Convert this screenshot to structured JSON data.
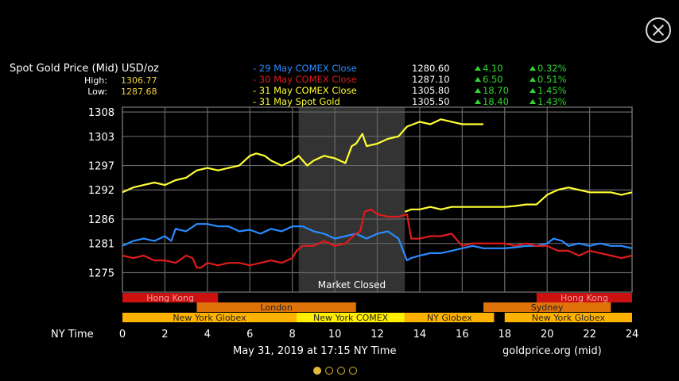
{
  "header": {
    "title": "Spot Gold Price (Mid) USD/oz",
    "high_label": "High:",
    "high_value": "1306.77",
    "low_label": "Low:",
    "low_value": "1287.68"
  },
  "legend": [
    {
      "name": "- 29 May COMEX Close",
      "color": "#2a8cff",
      "price": "1280.60",
      "change": "4.10",
      "pct": "0.32%"
    },
    {
      "name": "- 30 May COMEX Close",
      "color": "#e01b1b",
      "price": "1287.10",
      "change": "6.50",
      "pct": "0.51%"
    },
    {
      "name": "- 31 May COMEX Close",
      "color": "#ffff33",
      "price": "1305.80",
      "change": "18.70",
      "pct": "1.45%"
    },
    {
      "name": "- 31 May Spot Gold",
      "color": "#ffff33",
      "price": "1305.50",
      "change": "18.40",
      "pct": "1.43%"
    }
  ],
  "footer": {
    "date": "May 31, 2019 at 17:15 NY Time",
    "source": "goldprice.org (mid)"
  },
  "pager": {
    "count": 4,
    "active": 0
  },
  "chart_data": {
    "type": "line",
    "xlabel": "NY Time",
    "xlim": [
      0,
      24
    ],
    "ylim": [
      1271,
      1309
    ],
    "x_ticks": [
      0,
      2,
      4,
      6,
      8,
      10,
      12,
      14,
      16,
      18,
      20,
      22,
      24
    ],
    "y_ticks": [
      1275,
      1281,
      1286,
      1292,
      1297,
      1303,
      1308
    ],
    "closed_region": {
      "start": 8.3,
      "end": 13.3,
      "label": "Market Closed"
    },
    "sessions": [
      {
        "row": 1,
        "segments": [
          {
            "label": "Hong Kong",
            "start": 0,
            "end": 4.5,
            "color": "#cc1111",
            "text_color": "#f0a0a0"
          },
          {
            "label": "Hong Kong",
            "start": 19.5,
            "end": 24,
            "color": "#cc1111",
            "text_color": "#f0a0a0"
          }
        ]
      },
      {
        "row": 2,
        "segments": [
          {
            "label": "London",
            "start": 3.5,
            "end": 11,
            "color": "#e0720a",
            "text_color": "#222"
          },
          {
            "label": "Sydney",
            "start": 17,
            "end": 23,
            "color": "#e0720a",
            "text_color": "#222"
          }
        ]
      },
      {
        "row": 3,
        "segments": [
          {
            "label": "New York Globex",
            "start": 0,
            "end": 8.2,
            "color": "#ffb300",
            "text_color": "#222"
          },
          {
            "label": "New York COMEX",
            "start": 8.2,
            "end": 13.3,
            "color": "#ffee00",
            "text_color": "#222"
          },
          {
            "label": "NY Globex",
            "start": 13.3,
            "end": 17.5,
            "color": "#ffb300",
            "text_color": "#222"
          },
          {
            "label": "New York Globex",
            "start": 18,
            "end": 24,
            "color": "#ffb300",
            "text_color": "#222"
          }
        ]
      }
    ],
    "series": [
      {
        "name": "29 May COMEX Close",
        "color": "#2a8cff",
        "x": [
          0,
          0.5,
          1,
          1.5,
          2,
          2.3,
          2.5,
          3,
          3.5,
          4,
          4.5,
          5,
          5.5,
          6,
          6.5,
          7,
          7.5,
          8,
          8.5,
          9,
          9.5,
          10,
          10.5,
          11,
          11.5,
          12,
          12.5,
          13,
          13.4,
          13.6,
          14,
          14.5,
          15,
          15.5,
          16,
          16.5,
          17,
          17.5,
          18,
          18.5,
          19,
          19.5,
          20,
          20.3,
          20.7,
          21,
          21.5,
          22,
          22.5,
          23,
          23.5,
          24
        ],
        "y": [
          1280.5,
          1281.5,
          1282,
          1281.5,
          1282.5,
          1281.5,
          1284,
          1283.5,
          1285,
          1285,
          1284.5,
          1284.5,
          1283.5,
          1283.8,
          1283,
          1284,
          1283.5,
          1284.5,
          1284.5,
          1283.5,
          1283,
          1282,
          1282.5,
          1283,
          1282,
          1283,
          1283.5,
          1282,
          1277.5,
          1278,
          1278.5,
          1279,
          1279,
          1279.5,
          1280,
          1280.5,
          1280,
          1280,
          1280,
          1280.2,
          1280.5,
          1280.5,
          1281,
          1282,
          1281.5,
          1280.5,
          1281,
          1280.5,
          1281,
          1280.5,
          1280.5,
          1280
        ]
      },
      {
        "name": "30 May COMEX Close",
        "color": "#e01b1b",
        "x": [
          0,
          0.5,
          1,
          1.5,
          2,
          2.5,
          3,
          3.3,
          3.5,
          3.7,
          4,
          4.5,
          5,
          5.5,
          6,
          6.5,
          7,
          7.5,
          8,
          8.2,
          8.5,
          9,
          9.5,
          10,
          10.5,
          11,
          11.2,
          11.4,
          11.7,
          12,
          12.5,
          13,
          13.4,
          13.6,
          14,
          14.5,
          15,
          15.5,
          15.7,
          16,
          16.5,
          17,
          17.5,
          18,
          18.5,
          19,
          19.5,
          20,
          20.5,
          21,
          21.5,
          22,
          22.5,
          23,
          23.5,
          24
        ],
        "y": [
          1278.5,
          1278,
          1278.5,
          1277.5,
          1277.5,
          1277,
          1278.5,
          1278,
          1276,
          1276,
          1277,
          1276.5,
          1277,
          1277,
          1276.5,
          1277,
          1277.5,
          1277,
          1278,
          1279.5,
          1280.5,
          1280.5,
          1281.5,
          1280.5,
          1281,
          1283,
          1283.5,
          1287.5,
          1288,
          1287,
          1286.5,
          1286.5,
          1287,
          1282,
          1282,
          1282.5,
          1282.5,
          1283,
          1282,
          1280.5,
          1281,
          1281,
          1281,
          1281,
          1280.5,
          1281,
          1280.5,
          1280.5,
          1279.5,
          1279.5,
          1278.5,
          1279.5,
          1279,
          1278.5,
          1278,
          1278.5
        ]
      },
      {
        "name": "31 May Spot Gold",
        "color": "#ffff33",
        "x": [
          0,
          0.5,
          1,
          1.5,
          2,
          2.5,
          3,
          3.5,
          4,
          4.5,
          5,
          5.5,
          6,
          6.3,
          6.7,
          7,
          7.5,
          8,
          8.3,
          8.7,
          9,
          9.5,
          10,
          10.5,
          10.8,
          11,
          11.3,
          11.5,
          12,
          12.5,
          13,
          13.2,
          13.4,
          13.7,
          14,
          14.5,
          15,
          15.5,
          16,
          16.5,
          17
        ],
        "y": [
          1291.5,
          1292.5,
          1293,
          1293.5,
          1293,
          1294,
          1294.5,
          1296,
          1296.5,
          1296,
          1296.5,
          1297,
          1299,
          1299.5,
          1299,
          1298,
          1297,
          1298,
          1299,
          1297,
          1298,
          1299,
          1298.5,
          1297.5,
          1301,
          1301.5,
          1303.5,
          1301,
          1301.5,
          1302.5,
          1303,
          1304,
          1305,
          1305.5,
          1306,
          1305.5,
          1306.5,
          1306,
          1305.5,
          1305.5,
          1305.5
        ]
      },
      {
        "name": "31 May COMEX Close",
        "color": "#ffff33",
        "x": [
          13.3,
          13.6,
          14,
          14.5,
          15,
          15.5,
          16,
          16.5,
          17,
          17.5,
          18,
          18.5,
          19,
          19.5,
          20,
          20.5,
          21,
          21.5,
          22,
          22.5,
          23,
          23.5,
          24
        ],
        "y": [
          1287.5,
          1288,
          1288,
          1288.5,
          1288,
          1288.5,
          1288.5,
          1288.5,
          1288.5,
          1288.5,
          1288.5,
          1288.7,
          1289,
          1289,
          1291,
          1292,
          1292.5,
          1292,
          1291.5,
          1291.5,
          1291.5,
          1291,
          1291.5
        ]
      }
    ]
  }
}
